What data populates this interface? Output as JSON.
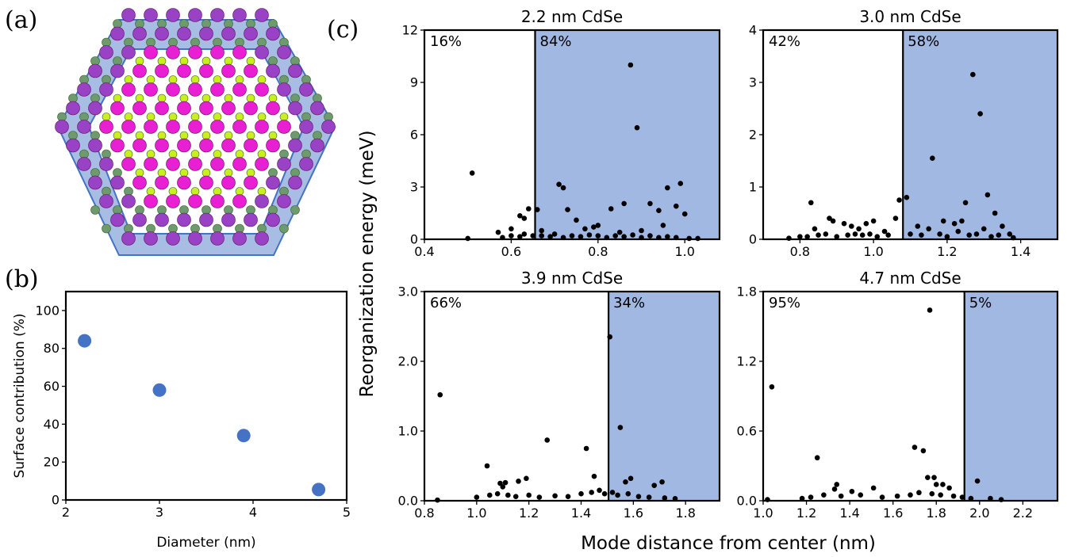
{
  "panel_labels": {
    "a": "(a)",
    "b": "(b)",
    "c": "(c)"
  },
  "colors": {
    "accent": "#4472c4",
    "surface_fill": "#a1b8e2",
    "hex_fill": "#a8bde3",
    "cd_atom": "#e81fd3",
    "se_atom": "#c8f01b",
    "surface_atom": "#9a42c6",
    "ligand_atom": "#6e9b6e"
  },
  "shared": {
    "ylabel": "Reorganization energy (meV)",
    "xlabel": "Mode distance from center (nm)"
  },
  "chart_data": [
    {
      "type": "scatter",
      "panel": "b",
      "xlabel": "Diameter (nm)",
      "ylabel": "Surface contribution (%)",
      "xlim": [
        2,
        5
      ],
      "ylim": [
        0,
        110
      ],
      "xticks": [
        "2",
        "3",
        "4",
        "5"
      ],
      "yticks": [
        "0",
        "20",
        "40",
        "60",
        "80",
        "100"
      ],
      "x": [
        2.2,
        3.0,
        3.9,
        4.7
      ],
      "y": [
        84,
        58,
        34,
        5.5
      ]
    },
    {
      "type": "scatter",
      "panel": "c1",
      "title": "2.2 nm CdSe",
      "xlim": [
        0.4,
        1.08
      ],
      "ylim": [
        0,
        12
      ],
      "xticks": [
        "0.4",
        "0.6",
        "0.8",
        "1.0"
      ],
      "yticks": [
        "0",
        "3",
        "6",
        "9",
        "12"
      ],
      "boundary": 0.655,
      "core_pct": "16%",
      "surface_pct": "84%",
      "points": [
        [
          0.51,
          3.8
        ],
        [
          0.57,
          0.4
        ],
        [
          0.6,
          0.6
        ],
        [
          0.62,
          1.35
        ],
        [
          0.63,
          1.2
        ],
        [
          0.64,
          1.75
        ],
        [
          0.66,
          1.7
        ],
        [
          0.67,
          0.5
        ],
        [
          0.71,
          3.15
        ],
        [
          0.72,
          2.95
        ],
        [
          0.73,
          1.7
        ],
        [
          0.75,
          1.1
        ],
        [
          0.77,
          0.6
        ],
        [
          0.79,
          0.7
        ],
        [
          0.8,
          0.8
        ],
        [
          0.83,
          1.75
        ],
        [
          0.85,
          0.4
        ],
        [
          0.86,
          2.05
        ],
        [
          0.875,
          10.0
        ],
        [
          0.89,
          6.4
        ],
        [
          0.9,
          0.5
        ],
        [
          0.92,
          2.05
        ],
        [
          0.94,
          1.65
        ],
        [
          0.95,
          0.8
        ],
        [
          0.96,
          2.95
        ],
        [
          0.98,
          1.9
        ],
        [
          0.99,
          3.2
        ],
        [
          1.0,
          1.45
        ],
        [
          0.5,
          0.05
        ],
        [
          0.58,
          0.1
        ],
        [
          0.6,
          0.2
        ],
        [
          0.62,
          0.15
        ],
        [
          0.63,
          0.3
        ],
        [
          0.65,
          0.2
        ],
        [
          0.67,
          0.2
        ],
        [
          0.69,
          0.15
        ],
        [
          0.7,
          0.3
        ],
        [
          0.72,
          0.1
        ],
        [
          0.74,
          0.2
        ],
        [
          0.76,
          0.15
        ],
        [
          0.78,
          0.25
        ],
        [
          0.8,
          0.2
        ],
        [
          0.82,
          0.1
        ],
        [
          0.84,
          0.2
        ],
        [
          0.86,
          0.15
        ],
        [
          0.88,
          0.25
        ],
        [
          0.9,
          0.1
        ],
        [
          0.92,
          0.2
        ],
        [
          0.94,
          0.1
        ],
        [
          0.96,
          0.15
        ],
        [
          0.98,
          0.1
        ],
        [
          1.01,
          0.05
        ],
        [
          1.03,
          0.05
        ]
      ]
    },
    {
      "type": "scatter",
      "panel": "c2",
      "title": "3.0 nm CdSe",
      "xlim": [
        0.7,
        1.5
      ],
      "ylim": [
        0,
        4
      ],
      "xticks": [
        "0.8",
        "1.0",
        "1.2",
        "1.4"
      ],
      "yticks": [
        "0",
        "1",
        "2",
        "3",
        "4"
      ],
      "boundary": 1.08,
      "core_pct": "42%",
      "surface_pct": "58%",
      "points": [
        [
          0.83,
          0.7
        ],
        [
          0.84,
          0.2
        ],
        [
          0.88,
          0.4
        ],
        [
          0.89,
          0.35
        ],
        [
          0.92,
          0.3
        ],
        [
          0.94,
          0.25
        ],
        [
          0.96,
          0.2
        ],
        [
          0.98,
          0.3
        ],
        [
          1.0,
          0.35
        ],
        [
          1.03,
          0.15
        ],
        [
          1.06,
          0.4
        ],
        [
          1.07,
          0.75
        ],
        [
          1.09,
          0.8
        ],
        [
          1.12,
          0.25
        ],
        [
          1.15,
          0.2
        ],
        [
          1.16,
          1.55
        ],
        [
          1.19,
          0.35
        ],
        [
          1.22,
          0.3
        ],
        [
          1.23,
          0.15
        ],
        [
          1.24,
          0.35
        ],
        [
          1.25,
          0.7
        ],
        [
          1.27,
          3.15
        ],
        [
          1.29,
          2.4
        ],
        [
          1.3,
          0.2
        ],
        [
          1.31,
          0.85
        ],
        [
          1.33,
          0.5
        ],
        [
          1.35,
          0.25
        ],
        [
          1.37,
          0.1
        ],
        [
          0.77,
          0.02
        ],
        [
          0.8,
          0.05
        ],
        [
          0.82,
          0.05
        ],
        [
          0.85,
          0.08
        ],
        [
          0.87,
          0.1
        ],
        [
          0.9,
          0.05
        ],
        [
          0.93,
          0.08
        ],
        [
          0.95,
          0.1
        ],
        [
          0.97,
          0.08
        ],
        [
          0.99,
          0.1
        ],
        [
          1.01,
          0.05
        ],
        [
          1.04,
          0.08
        ],
        [
          1.1,
          0.1
        ],
        [
          1.13,
          0.08
        ],
        [
          1.18,
          0.1
        ],
        [
          1.2,
          0.05
        ],
        [
          1.26,
          0.08
        ],
        [
          1.28,
          0.1
        ],
        [
          1.32,
          0.05
        ],
        [
          1.34,
          0.08
        ],
        [
          1.38,
          0.03
        ]
      ]
    },
    {
      "type": "scatter",
      "panel": "c3",
      "title": "3.9 nm CdSe",
      "xlim": [
        0.8,
        1.93
      ],
      "ylim": [
        0,
        3.0
      ],
      "xticks": [
        "0.8",
        "1.0",
        "1.2",
        "1.4",
        "1.6",
        "1.8"
      ],
      "yticks": [
        "0.0",
        "1.0",
        "2.0",
        "3.0"
      ],
      "boundary": 1.505,
      "core_pct": "66%",
      "surface_pct": "34%",
      "points": [
        [
          0.86,
          1.52
        ],
        [
          0.85,
          0.01
        ],
        [
          1.04,
          0.5
        ],
        [
          1.09,
          0.25
        ],
        [
          1.1,
          0.2
        ],
        [
          1.11,
          0.26
        ],
        [
          1.16,
          0.28
        ],
        [
          1.19,
          0.32
        ],
        [
          1.27,
          0.87
        ],
        [
          1.42,
          0.75
        ],
        [
          1.45,
          0.35
        ],
        [
          1.51,
          2.35
        ],
        [
          1.55,
          1.05
        ],
        [
          1.57,
          0.27
        ],
        [
          1.59,
          0.32
        ],
        [
          1.68,
          0.22
        ],
        [
          1.71,
          0.27
        ],
        [
          1.0,
          0.05
        ],
        [
          1.05,
          0.08
        ],
        [
          1.08,
          0.1
        ],
        [
          1.12,
          0.08
        ],
        [
          1.15,
          0.06
        ],
        [
          1.2,
          0.08
        ],
        [
          1.24,
          0.05
        ],
        [
          1.3,
          0.07
        ],
        [
          1.35,
          0.06
        ],
        [
          1.4,
          0.1
        ],
        [
          1.44,
          0.12
        ],
        [
          1.47,
          0.15
        ],
        [
          1.49,
          0.1
        ],
        [
          1.52,
          0.12
        ],
        [
          1.54,
          0.08
        ],
        [
          1.58,
          0.1
        ],
        [
          1.62,
          0.06
        ],
        [
          1.66,
          0.05
        ],
        [
          1.72,
          0.04
        ],
        [
          1.76,
          0.03
        ]
      ]
    },
    {
      "type": "scatter",
      "panel": "c4",
      "title": "4.7 nm CdSe",
      "xlim": [
        1.0,
        2.36
      ],
      "ylim": [
        0,
        1.8
      ],
      "xticks": [
        "1.0",
        "1.2",
        "1.4",
        "1.6",
        "1.8",
        "2.0",
        "2.2"
      ],
      "yticks": [
        "0.0",
        "0.6",
        "1.2",
        "1.8"
      ],
      "boundary": 1.93,
      "core_pct": "95%",
      "surface_pct": "5%",
      "points": [
        [
          1.04,
          0.98
        ],
        [
          1.02,
          0.01
        ],
        [
          1.25,
          0.37
        ],
        [
          1.34,
          0.14
        ],
        [
          1.33,
          0.1
        ],
        [
          1.41,
          0.08
        ],
        [
          1.51,
          0.11
        ],
        [
          1.7,
          0.46
        ],
        [
          1.74,
          0.43
        ],
        [
          1.77,
          1.64
        ],
        [
          1.76,
          0.2
        ],
        [
          1.79,
          0.2
        ],
        [
          1.8,
          0.14
        ],
        [
          1.83,
          0.14
        ],
        [
          1.86,
          0.11
        ],
        [
          1.99,
          0.17
        ],
        [
          1.18,
          0.02
        ],
        [
          1.22,
          0.03
        ],
        [
          1.28,
          0.05
        ],
        [
          1.36,
          0.04
        ],
        [
          1.45,
          0.05
        ],
        [
          1.55,
          0.03
        ],
        [
          1.62,
          0.04
        ],
        [
          1.68,
          0.05
        ],
        [
          1.72,
          0.07
        ],
        [
          1.78,
          0.06
        ],
        [
          1.82,
          0.05
        ],
        [
          1.88,
          0.04
        ],
        [
          1.92,
          0.03
        ],
        [
          1.96,
          0.02
        ],
        [
          2.05,
          0.02
        ],
        [
          2.1,
          0.01
        ]
      ]
    }
  ]
}
